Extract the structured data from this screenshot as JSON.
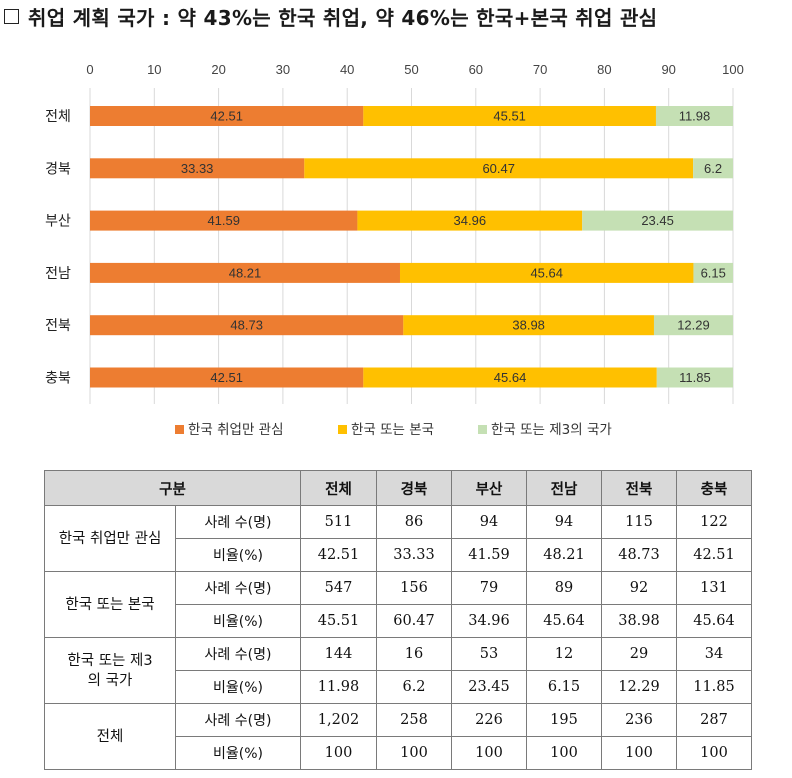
{
  "title": "취업 계획 국가 : 약 43%는 한국 취업, 약 46%는 한국+본국 취업 관심",
  "chart_data": {
    "type": "bar",
    "orientation": "horizontal",
    "stacked": true,
    "xlim": [
      0,
      100
    ],
    "xticks": [
      "0",
      "10",
      "20",
      "30",
      "40",
      "50",
      "60",
      "70",
      "80",
      "90",
      "100"
    ],
    "categories": [
      "전체",
      "경북",
      "부산",
      "전남",
      "전북",
      "충북"
    ],
    "series": [
      {
        "name": "한국 취업만 관심",
        "color": "#ed7d31",
        "values": [
          42.51,
          33.33,
          41.59,
          48.21,
          48.73,
          42.51
        ],
        "labels": [
          "42.51",
          "33.33",
          "41.59",
          "48.21",
          "48.73",
          "42.51"
        ]
      },
      {
        "name": "한국 또는 본국",
        "color": "#ffc000",
        "values": [
          45.51,
          60.47,
          34.96,
          45.64,
          38.98,
          45.64
        ],
        "labels": [
          "45.51",
          "60.47",
          "34.96",
          "45.64",
          "38.98",
          "45.64"
        ]
      },
      {
        "name": "한국 또는 제3의 국가",
        "color": "#c5e0b4",
        "values": [
          11.98,
          6.2,
          23.45,
          6.15,
          12.29,
          11.85
        ],
        "labels": [
          "11.98",
          "6.2",
          "23.45",
          "6.15",
          "12.29",
          "11.85"
        ]
      }
    ],
    "legend": "bottom",
    "grid": true
  },
  "table": {
    "header": {
      "label": "구분",
      "cols": [
        "전체",
        "경북",
        "부산",
        "전남",
        "전북",
        "충북"
      ]
    },
    "groups": [
      {
        "name": "한국 취업만 관심",
        "rows": [
          {
            "label": "사례 수(명)",
            "values": [
              "511",
              "86",
              "94",
              "94",
              "115",
              "122"
            ]
          },
          {
            "label": "비율(%)",
            "values": [
              "42.51",
              "33.33",
              "41.59",
              "48.21",
              "48.73",
              "42.51"
            ]
          }
        ]
      },
      {
        "name": "한국 또는 본국",
        "rows": [
          {
            "label": "사례 수(명)",
            "values": [
              "547",
              "156",
              "79",
              "89",
              "92",
              "131"
            ]
          },
          {
            "label": "비율(%)",
            "values": [
              "45.51",
              "60.47",
              "34.96",
              "45.64",
              "38.98",
              "45.64"
            ]
          }
        ]
      },
      {
        "name": "한국 또는 제3의 국가",
        "rows": [
          {
            "label": "사례 수(명)",
            "values": [
              "144",
              "16",
              "53",
              "12",
              "29",
              "34"
            ]
          },
          {
            "label": "비율(%)",
            "values": [
              "11.98",
              "6.2",
              "23.45",
              "6.15",
              "12.29",
              "11.85"
            ]
          }
        ]
      },
      {
        "name": "전체",
        "rows": [
          {
            "label": "사례 수(명)",
            "values": [
              "1,202",
              "258",
              "226",
              "195",
              "236",
              "287"
            ]
          },
          {
            "label": "비율(%)",
            "values": [
              "100",
              "100",
              "100",
              "100",
              "100",
              "100"
            ]
          }
        ]
      }
    ]
  }
}
